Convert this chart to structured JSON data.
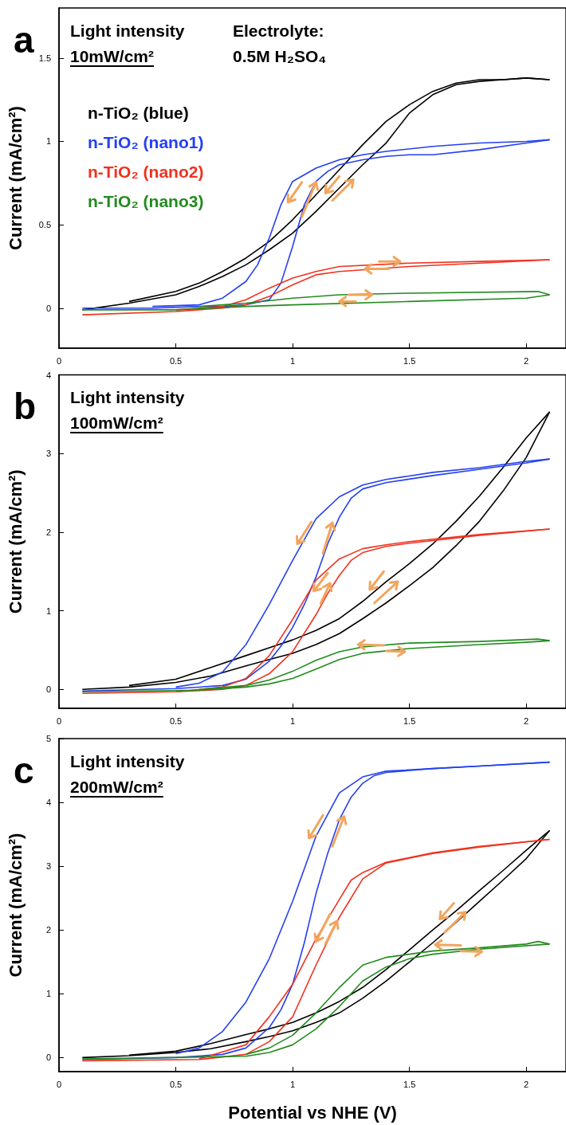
{
  "chart_data": [
    {
      "type": "line",
      "title": "a",
      "ylabel": "Current (mA/cm²)",
      "annotations": [
        "Light intensity",
        "10mW/cm²",
        "Electrolyte:",
        "0.5M H₂SO₄"
      ],
      "xlim": [
        0,
        2.17
      ],
      "xticks": [
        0,
        0.5,
        1,
        1.5,
        2
      ],
      "ylim": [
        -0.24,
        1.8
      ],
      "yticks": [
        0,
        0.5,
        1,
        1.5
      ],
      "legend": "top left",
      "marker": "none",
      "line_style": "solid",
      "series": [
        {
          "name": "n-TiO₂ (blue)",
          "color": "#000000",
          "x": [
            0.1,
            0.3,
            0.5,
            0.6,
            0.7,
            0.8,
            0.9,
            1.0,
            1.1,
            1.2,
            1.3,
            1.4,
            1.5,
            1.6,
            1.7,
            1.8,
            1.9,
            2.0,
            2.1
          ],
          "values": [
            -0.01,
            0.03,
            0.08,
            0.13,
            0.19,
            0.26,
            0.35,
            0.45,
            0.58,
            0.72,
            0.86,
            0.99,
            1.17,
            1.28,
            1.34,
            1.36,
            1.37,
            1.38,
            1.37
          ]
        },
        {
          "color": "#000000",
          "x": [
            0.3,
            0.5,
            0.6,
            0.7,
            0.8,
            0.9,
            1.0,
            1.1,
            1.2,
            1.3,
            1.4,
            1.5,
            1.6,
            1.7,
            1.8,
            1.9,
            2.0,
            2.1
          ],
          "values": [
            0.04,
            0.1,
            0.15,
            0.22,
            0.3,
            0.4,
            0.53,
            0.68,
            0.83,
            0.98,
            1.12,
            1.22,
            1.3,
            1.35,
            1.37,
            1.37,
            1.38,
            1.37
          ]
        },
        {
          "name": "n-TiO₂ (nano1)",
          "color": "#2440f0",
          "x": [
            0.1,
            0.4,
            0.6,
            0.7,
            0.8,
            0.9,
            0.95,
            1.0,
            1.05,
            1.1,
            1.15,
            1.2,
            1.3,
            1.4,
            1.5,
            1.6,
            1.8,
            2.0,
            2.1
          ],
          "values": [
            0,
            0,
            0.01,
            0.01,
            0.02,
            0.05,
            0.15,
            0.37,
            0.62,
            0.76,
            0.82,
            0.86,
            0.89,
            0.91,
            0.92,
            0.92,
            0.95,
            0.99,
            1.01
          ]
        },
        {
          "color": "#2440f0",
          "x": [
            0.4,
            0.6,
            0.7,
            0.8,
            0.85,
            0.9,
            0.95,
            1.0,
            1.1,
            1.2,
            1.3,
            1.4,
            1.6,
            1.8,
            2.0,
            2.1
          ],
          "values": [
            0.01,
            0.02,
            0.06,
            0.16,
            0.26,
            0.42,
            0.62,
            0.76,
            0.84,
            0.89,
            0.92,
            0.94,
            0.97,
            0.99,
            1.0,
            1.01
          ]
        },
        {
          "name": "n-TiO₂ (nano2)",
          "color": "#f0321e",
          "x": [
            0.1,
            0.5,
            0.7,
            0.8,
            0.9,
            1.0,
            1.1,
            1.2,
            1.5,
            1.8,
            2.1
          ],
          "values": [
            -0.04,
            -0.02,
            0,
            0.02,
            0.07,
            0.14,
            0.2,
            0.22,
            0.25,
            0.27,
            0.29
          ]
        },
        {
          "color": "#f0321e",
          "x": [
            0.5,
            0.7,
            0.8,
            0.9,
            1.0,
            1.1,
            1.2,
            1.5,
            1.8,
            2.1
          ],
          "values": [
            -0.01,
            0.01,
            0.05,
            0.12,
            0.18,
            0.22,
            0.25,
            0.27,
            0.28,
            0.29
          ]
        },
        {
          "name": "n-TiO₂ (nano3)",
          "color": "#228b1e",
          "x": [
            0.1,
            0.5,
            0.8,
            1.0,
            1.5,
            2.0,
            2.1
          ],
          "values": [
            -0.01,
            -0.01,
            0.01,
            0.02,
            0.04,
            0.06,
            0.08
          ]
        },
        {
          "color": "#228b1e",
          "x": [
            0.6,
            0.8,
            1.0,
            1.2,
            1.5,
            2.05,
            2.1
          ],
          "values": [
            0.01,
            0.03,
            0.06,
            0.08,
            0.09,
            0.1,
            0.08
          ]
        }
      ]
    },
    {
      "type": "line",
      "title": "b",
      "ylabel": "Current (mA/cm²)",
      "annotations": [
        "Light intensity",
        "100mW/cm²"
      ],
      "xlim": [
        0,
        2.17
      ],
      "xticks": [
        0,
        0.5,
        1,
        1.5,
        2
      ],
      "ylim": [
        -0.24,
        4
      ],
      "yticks": [
        0,
        1,
        2,
        3,
        4
      ],
      "marker": "none",
      "line_style": "solid",
      "series": [
        {
          "color": "#000000",
          "x": [
            0.1,
            0.3,
            0.5,
            0.65,
            0.8,
            0.9,
            1.0,
            1.1,
            1.2,
            1.3,
            1.4,
            1.5,
            1.6,
            1.7,
            1.8,
            1.9,
            2.0,
            2.1
          ],
          "values": [
            0,
            0.03,
            0.09,
            0.17,
            0.3,
            0.38,
            0.46,
            0.57,
            0.71,
            0.9,
            1.1,
            1.32,
            1.55,
            1.83,
            2.14,
            2.52,
            2.95,
            3.53
          ]
        },
        {
          "color": "#000000",
          "x": [
            0.3,
            0.5,
            0.65,
            0.8,
            0.9,
            1.0,
            1.1,
            1.2,
            1.3,
            1.4,
            1.5,
            1.6,
            1.7,
            1.8,
            1.9,
            2.0,
            2.1
          ],
          "values": [
            0.05,
            0.13,
            0.28,
            0.43,
            0.53,
            0.63,
            0.75,
            0.9,
            1.12,
            1.37,
            1.6,
            1.85,
            2.14,
            2.46,
            2.82,
            3.2,
            3.53
          ]
        },
        {
          "color": "#2440f0",
          "x": [
            0.1,
            0.5,
            0.7,
            0.8,
            0.9,
            0.95,
            1.0,
            1.05,
            1.1,
            1.15,
            1.2,
            1.25,
            1.3,
            1.4,
            1.6,
            1.8,
            2.0,
            2.1
          ],
          "values": [
            -0.02,
            0.01,
            0.05,
            0.13,
            0.36,
            0.55,
            0.79,
            1.08,
            1.43,
            1.85,
            2.19,
            2.43,
            2.55,
            2.63,
            2.72,
            2.8,
            2.88,
            2.93
          ]
        },
        {
          "color": "#2440f0",
          "x": [
            0.5,
            0.6,
            0.7,
            0.8,
            0.9,
            1.0,
            1.1,
            1.2,
            1.3,
            1.4,
            1.6,
            1.8,
            2.0,
            2.1
          ],
          "values": [
            0.03,
            0.08,
            0.22,
            0.57,
            1.08,
            1.64,
            2.17,
            2.45,
            2.6,
            2.67,
            2.76,
            2.82,
            2.9,
            2.93
          ]
        },
        {
          "color": "#f0321e",
          "x": [
            0.1,
            0.5,
            0.7,
            0.8,
            0.9,
            1.0,
            1.1,
            1.15,
            1.2,
            1.25,
            1.3,
            1.4,
            1.5,
            1.8,
            2.1
          ],
          "values": [
            -0.05,
            -0.03,
            0,
            0.05,
            0.2,
            0.48,
            0.95,
            1.22,
            1.45,
            1.64,
            1.74,
            1.82,
            1.86,
            1.96,
            2.04
          ]
        },
        {
          "color": "#f0321e",
          "x": [
            0.5,
            0.7,
            0.8,
            0.9,
            1.0,
            1.1,
            1.2,
            1.3,
            1.4,
            1.5,
            1.8,
            2.1
          ],
          "values": [
            -0.03,
            0.03,
            0.14,
            0.43,
            0.89,
            1.39,
            1.66,
            1.79,
            1.84,
            1.88,
            1.97,
            2.04
          ]
        },
        {
          "color": "#228b1e",
          "x": [
            0.1,
            0.6,
            0.8,
            0.9,
            1.0,
            1.1,
            1.2,
            1.3,
            1.5,
            1.8,
            2.0,
            2.1
          ],
          "values": [
            -0.03,
            -0.01,
            0.03,
            0.07,
            0.14,
            0.26,
            0.38,
            0.46,
            0.52,
            0.57,
            0.6,
            0.62
          ]
        },
        {
          "color": "#228b1e",
          "x": [
            0.6,
            0.8,
            0.9,
            1.0,
            1.1,
            1.2,
            1.3,
            1.5,
            1.8,
            2.05,
            2.1
          ],
          "values": [
            0,
            0.05,
            0.12,
            0.23,
            0.37,
            0.48,
            0.54,
            0.59,
            0.61,
            0.64,
            0.62
          ]
        }
      ]
    },
    {
      "type": "line",
      "title": "c",
      "xlabel": "Potential vs NHE (V)",
      "ylabel": "Current (mA/cm²)",
      "annotations": [
        "Light intensity",
        "200mW/cm²"
      ],
      "xlim": [
        0,
        2.17
      ],
      "xticks": [
        0,
        0.5,
        1,
        1.5,
        2
      ],
      "ylim": [
        -0.22,
        5
      ],
      "yticks": [
        0,
        1,
        2,
        3,
        4,
        5
      ],
      "marker": "none",
      "line_style": "solid",
      "series": [
        {
          "color": "#000000",
          "x": [
            0.1,
            0.3,
            0.5,
            0.65,
            0.8,
            0.9,
            1.0,
            1.1,
            1.2,
            1.3,
            1.4,
            1.5,
            1.6,
            1.7,
            1.8,
            1.9,
            2.0,
            2.1
          ],
          "values": [
            0,
            0.03,
            0.08,
            0.14,
            0.25,
            0.33,
            0.42,
            0.55,
            0.7,
            0.93,
            1.2,
            1.5,
            1.8,
            2.12,
            2.45,
            2.78,
            3.12,
            3.56
          ]
        },
        {
          "color": "#000000",
          "x": [
            0.3,
            0.5,
            0.65,
            0.8,
            0.9,
            1.0,
            1.1,
            1.2,
            1.3,
            1.4,
            1.5,
            1.6,
            1.7,
            1.8,
            1.9,
            2.0,
            2.1
          ],
          "values": [
            0.04,
            0.1,
            0.22,
            0.36,
            0.45,
            0.55,
            0.7,
            0.88,
            1.1,
            1.38,
            1.69,
            2.0,
            2.3,
            2.62,
            2.93,
            3.25,
            3.56
          ]
        },
        {
          "color": "#2440f0",
          "x": [
            0.1,
            0.5,
            0.7,
            0.8,
            0.9,
            0.95,
            1.0,
            1.05,
            1.1,
            1.15,
            1.2,
            1.25,
            1.3,
            1.35,
            1.4,
            1.6,
            1.8,
            2.1
          ],
          "values": [
            -0.03,
            0,
            0.05,
            0.15,
            0.47,
            0.75,
            1.15,
            1.8,
            2.57,
            3.2,
            3.73,
            4.08,
            4.3,
            4.42,
            4.47,
            4.53,
            4.57,
            4.63
          ]
        },
        {
          "color": "#2440f0",
          "x": [
            0.5,
            0.6,
            0.7,
            0.8,
            0.9,
            1.0,
            1.1,
            1.2,
            1.3,
            1.4,
            1.6,
            1.8,
            2.1
          ],
          "values": [
            0.06,
            0.15,
            0.41,
            0.87,
            1.55,
            2.45,
            3.47,
            4.15,
            4.4,
            4.49,
            4.53,
            4.57,
            4.63
          ]
        },
        {
          "color": "#f0321e",
          "x": [
            0.1,
            0.6,
            0.8,
            0.9,
            1.0,
            1.1,
            1.2,
            1.3,
            1.4,
            1.6,
            1.8,
            2.1
          ],
          "values": [
            -0.05,
            -0.03,
            0.05,
            0.25,
            0.64,
            1.45,
            2.2,
            2.8,
            3.05,
            3.2,
            3.3,
            3.42
          ]
        },
        {
          "color": "#f0321e",
          "x": [
            0.6,
            0.8,
            0.9,
            1.0,
            1.1,
            1.2,
            1.25,
            1.3,
            1.4,
            1.6,
            1.8,
            2.1
          ],
          "values": [
            -0.02,
            0.2,
            0.64,
            1.15,
            1.86,
            2.48,
            2.78,
            2.9,
            3.06,
            3.21,
            3.31,
            3.42
          ]
        },
        {
          "color": "#228b1e",
          "x": [
            0.1,
            0.8,
            0.9,
            1.0,
            1.1,
            1.2,
            1.3,
            1.4,
            1.5,
            1.6,
            1.8,
            2.1
          ],
          "values": [
            -0.02,
            0.02,
            0.08,
            0.2,
            0.45,
            0.8,
            1.2,
            1.42,
            1.55,
            1.62,
            1.7,
            1.78
          ]
        },
        {
          "color": "#228b1e",
          "x": [
            0.8,
            0.9,
            1.0,
            1.1,
            1.2,
            1.3,
            1.4,
            1.6,
            1.8,
            2.0,
            2.05,
            2.1
          ],
          "values": [
            0.05,
            0.15,
            0.35,
            0.7,
            1.1,
            1.45,
            1.57,
            1.67,
            1.72,
            1.78,
            1.82,
            1.78
          ]
        }
      ]
    }
  ]
}
